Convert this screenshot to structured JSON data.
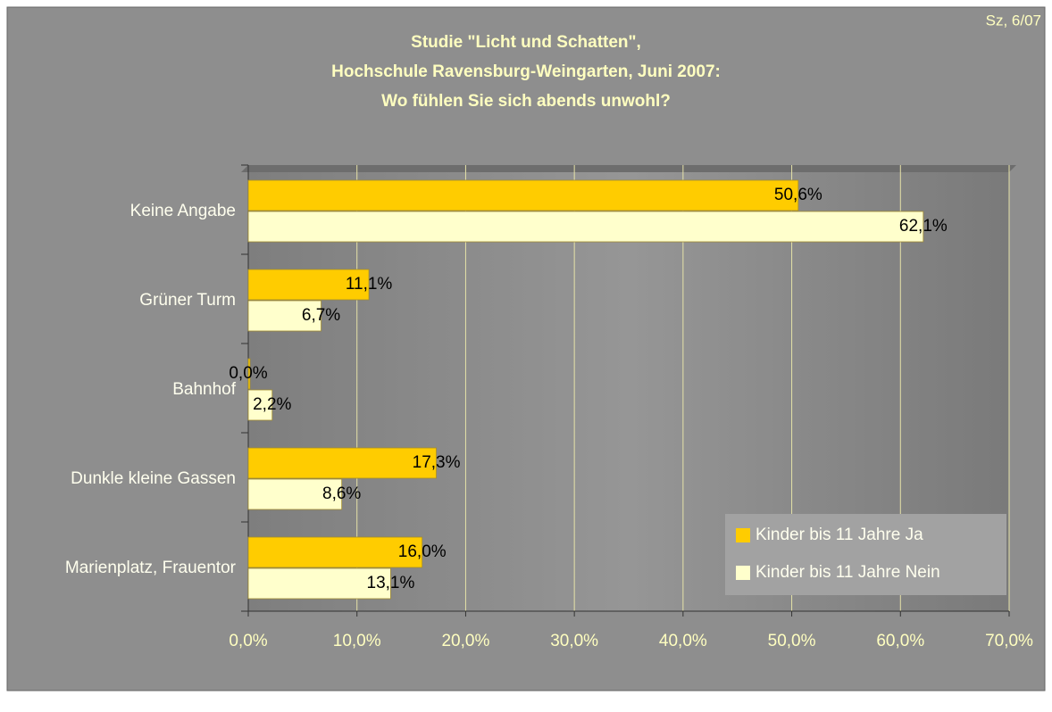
{
  "chart_data": {
    "type": "bar",
    "orientation": "horizontal",
    "title": [
      "Studie \"Licht und Schatten\",",
      "Hochschule Ravensburg-Weingarten, Juni 2007:",
      "Wo fühlen Sie sich abends unwohl?"
    ],
    "annotation": "Sz, 6/07",
    "categories": [
      "Keine Angabe",
      "Grüner Turm",
      "Bahnhof",
      "Dunkle kleine Gassen",
      "Marienplatz, Frauentor"
    ],
    "series": [
      {
        "name": "Kinder bis 11 Jahre Ja",
        "color": "#ffcc00",
        "values": [
          50.6,
          11.1,
          0.0,
          17.3,
          16.0
        ],
        "value_labels": [
          "50,6%",
          "11,1%",
          "0,0%",
          "17,3%",
          "16,0%"
        ]
      },
      {
        "name": "Kinder bis 11 Jahre Nein",
        "color": "#ffffcc",
        "values": [
          62.1,
          6.7,
          2.2,
          8.6,
          13.1
        ],
        "value_labels": [
          "62,1%",
          "6,7%",
          "2,2%",
          "8,6%",
          "13,1%"
        ]
      }
    ],
    "xlim": [
      0,
      70
    ],
    "xticks": [
      {
        "value": 0,
        "label": "0,0%"
      },
      {
        "value": 10,
        "label": "10,0%"
      },
      {
        "value": 20,
        "label": "20,0%"
      },
      {
        "value": 30,
        "label": "30,0%"
      },
      {
        "value": 40,
        "label": "40,0%"
      },
      {
        "value": 50,
        "label": "50,0%"
      },
      {
        "value": 60,
        "label": "60,0%"
      },
      {
        "value": 70,
        "label": "70,0%"
      }
    ],
    "grid": true,
    "legend": "lower right"
  }
}
